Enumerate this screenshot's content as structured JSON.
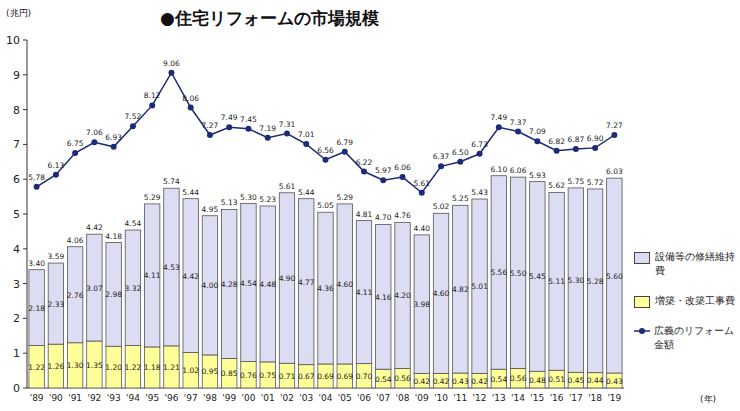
{
  "chart_data": {
    "type": "bar",
    "title": "●住宅リフォームの市場規模",
    "y_label": "(兆円)",
    "x_label": "(年)",
    "categories": [
      "'89",
      "'90",
      "'91",
      "'92",
      "'93",
      "'94",
      "'95",
      "'96",
      "'97",
      "'98",
      "'99",
      "'00",
      "'01",
      "'02",
      "'03",
      "'04",
      "'05",
      "'06",
      "'07",
      "'08",
      "'09",
      "'10",
      "'11",
      "'12",
      "'13",
      "'14",
      "'15",
      "'16",
      "'17",
      "'18",
      "'19"
    ],
    "series": [
      {
        "name": "増築・改築工事費",
        "type": "bar",
        "color": "#ffff99",
        "values": [
          1.22,
          1.26,
          1.3,
          1.35,
          1.2,
          1.22,
          1.18,
          1.21,
          1.02,
          0.95,
          0.85,
          0.76,
          0.75,
          0.71,
          0.67,
          0.69,
          0.69,
          0.7,
          0.54,
          0.56,
          0.42,
          0.42,
          0.43,
          0.42,
          0.54,
          0.56,
          0.48,
          0.51,
          0.45,
          0.44,
          0.43
        ],
        "value_labels": [
          "1.22",
          "1.26",
          "1.30",
          "1.35",
          "1.20",
          "1.22",
          "1.18",
          "1.21",
          "1.02",
          "0.95",
          "0.85",
          "0.76",
          "0.75",
          "0.71",
          "0.67",
          "0.69",
          "0.69",
          "0.70",
          "0.54",
          "0.56",
          "0.42",
          "0.42",
          "0.43",
          "0.42",
          "0.54",
          "0.56",
          "0.48",
          "0.51",
          "0.45",
          "0.44",
          "0.43"
        ]
      },
      {
        "name": "設備等の修繕維持費",
        "type": "bar",
        "color": "#dcdcf2",
        "values": [
          2.18,
          2.33,
          2.76,
          3.07,
          2.98,
          3.32,
          4.11,
          4.53,
          4.42,
          4.0,
          4.28,
          4.54,
          4.48,
          4.9,
          4.77,
          4.36,
          4.6,
          4.11,
          4.16,
          4.2,
          3.98,
          4.6,
          4.82,
          5.01,
          5.56,
          5.5,
          5.45,
          5.11,
          5.3,
          5.28,
          5.6
        ],
        "value_labels": [
          "2.18",
          "2.33",
          "2.76",
          "3.07",
          "2.98",
          "3.32",
          "4.11",
          "4.53",
          "4.42",
          "4.00",
          "4.28",
          "4.54",
          "4.48",
          "4.90",
          "4.77",
          "4.36",
          "4.60",
          "4.11",
          "4.16",
          "4.20",
          "3.98",
          "4.60",
          "4.82",
          "5.01",
          "5.56",
          "5.50",
          "5.45",
          "5.11",
          "5.30",
          "5.28",
          "5.60"
        ]
      },
      {
        "name": "広義のリフォーム金額",
        "type": "line",
        "color": "#1c2a78",
        "marker": "circle",
        "line_style": "solid",
        "values": [
          5.78,
          6.13,
          6.75,
          7.06,
          6.93,
          7.52,
          8.12,
          9.06,
          8.06,
          7.27,
          7.49,
          7.45,
          7.19,
          7.31,
          7.01,
          6.56,
          6.79,
          6.22,
          5.97,
          6.06,
          5.61,
          6.37,
          6.5,
          6.73,
          7.49,
          7.37,
          7.09,
          6.82,
          6.87,
          6.9,
          7.27
        ],
        "value_labels": [
          "5.78",
          "6.13",
          "6.75",
          "7.06",
          "6.93",
          "7.52",
          "8.12",
          "9.06",
          "8.06",
          "7.27",
          "7.49",
          "7.45",
          "7.19",
          "7.31",
          "7.01",
          "6.56",
          "6.79",
          "6.22",
          "5.97",
          "6.06",
          "5.61",
          "6.37",
          "6.50",
          "6.73",
          "7.49",
          "7.37",
          "7.09",
          "6.82",
          "6.87",
          "6.90",
          "7.27"
        ]
      }
    ],
    "totals": [
      3.4,
      3.59,
      4.06,
      4.42,
      4.18,
      4.54,
      5.29,
      5.74,
      5.44,
      4.95,
      5.13,
      5.3,
      5.23,
      5.61,
      5.44,
      5.05,
      5.29,
      4.81,
      4.7,
      4.76,
      4.4,
      5.02,
      5.25,
      5.43,
      6.1,
      6.06,
      5.93,
      5.62,
      5.75,
      5.72,
      6.03
    ],
    "total_labels": [
      "3.40",
      "3.59",
      "4.06",
      "4.42",
      "4.18",
      "4.54",
      "5.29",
      "5.74",
      "5.44",
      "4.95",
      "5.13",
      "5.30",
      "5.23",
      "5.61",
      "5.44",
      "5.05",
      "5.29",
      "4.81",
      "4.70",
      "4.76",
      "4.40",
      "5.02",
      "5.25",
      "5.43",
      "6.10",
      "6.06",
      "5.93",
      "5.62",
      "5.75",
      "5.72",
      "6.03"
    ],
    "ylim": [
      0,
      10
    ],
    "yticks": [
      0,
      1,
      2,
      3,
      4,
      5,
      6,
      7,
      8,
      9,
      10
    ],
    "stacked": true,
    "grid": false,
    "legend": "right",
    "data_labels": true
  }
}
